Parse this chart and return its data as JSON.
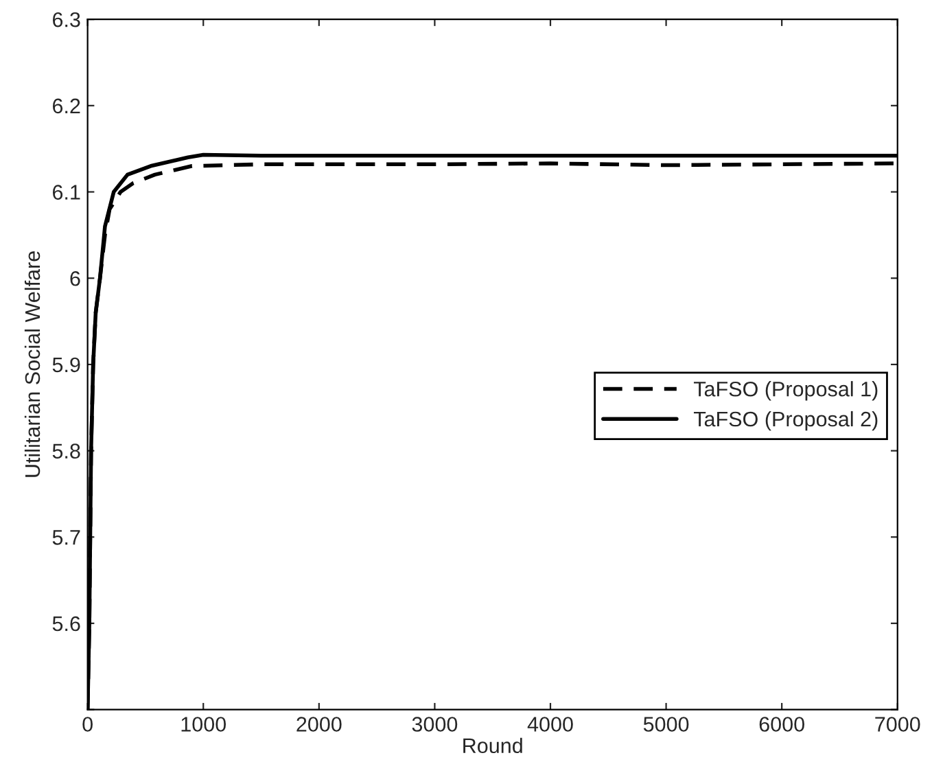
{
  "chart_data": {
    "type": "line",
    "xlabel": "Round",
    "ylabel": "Utilitarian Social Welfare",
    "xlim": [
      0,
      7000
    ],
    "xticks": [
      0,
      1000,
      2000,
      3000,
      4000,
      5000,
      6000,
      7000
    ],
    "ylim": [
      5.5,
      6.3
    ],
    "yticks": [
      {
        "value": 5.5,
        "label": null
      },
      5.6,
      5.7,
      5.8,
      5.9,
      6,
      6.1,
      6.2,
      6.3
    ],
    "grid": false,
    "legend": "right",
    "marker": "none",
    "series": [
      {
        "name": "TaFSO (Proposal 1)",
        "color": "#000000",
        "line_style": "dashed",
        "x": [
          0,
          15,
          30,
          48,
          70,
          107,
          150,
          190,
          285,
          392,
          582,
          902,
          1500,
          2000,
          3000,
          4000,
          5000,
          6000,
          7000
        ],
        "values": [
          5.5,
          5.6,
          5.8,
          5.9,
          5.96,
          6.0,
          6.05,
          6.08,
          6.1,
          6.11,
          6.12,
          6.13,
          6.132,
          6.132,
          6.132,
          6.133,
          6.131,
          6.132,
          6.133
        ]
      },
      {
        "name": "TaFSO (Proposal 2)",
        "color": "#000000",
        "line_style": "solid",
        "x": [
          0,
          15,
          30,
          48,
          70,
          107,
          150,
          226,
          345,
          546,
          867,
          1000,
          1500,
          2000,
          3000,
          4000,
          5000,
          6000,
          7000
        ],
        "values": [
          5.5,
          5.6,
          5.8,
          5.9,
          5.96,
          6.0,
          6.06,
          6.1,
          6.12,
          6.13,
          6.14,
          6.143,
          6.142,
          6.142,
          6.142,
          6.142,
          6.142,
          6.142,
          6.142
        ]
      }
    ]
  }
}
